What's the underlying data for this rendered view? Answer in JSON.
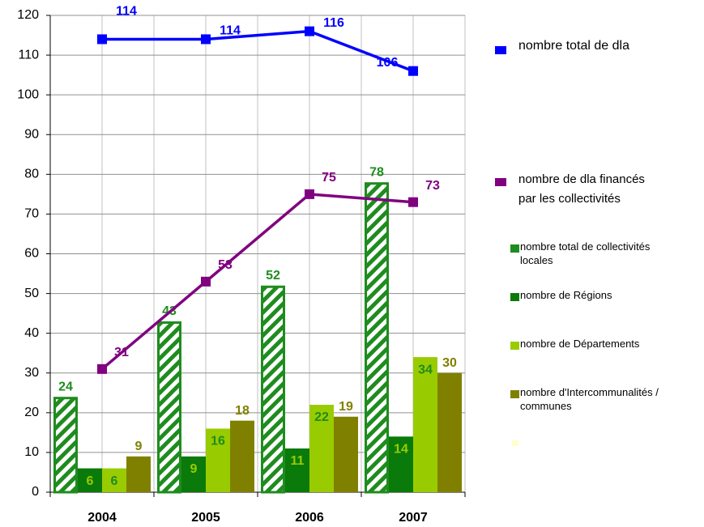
{
  "chart_data": {
    "type": "bar-line",
    "categories": [
      "2004",
      "2005",
      "2006",
      "2007"
    ],
    "series": [
      {
        "name": "nombre total de collectivités locales",
        "color": "#1e8c1e",
        "pattern": "hatch",
        "values": [
          24,
          43,
          52,
          78
        ]
      },
      {
        "name": "nombre de Régions",
        "color": "#0a7a0a",
        "values": [
          6,
          9,
          11,
          14
        ]
      },
      {
        "name": "nombre de Départements",
        "color": "#99cc00",
        "values": [
          6,
          16,
          22,
          34
        ]
      },
      {
        "name": "nombre d'Intercommunalités / communes",
        "color": "#808000",
        "values": [
          9,
          18,
          19,
          30
        ]
      }
    ],
    "lines": [
      {
        "name": "nombre total de dla",
        "color": "#0000ff",
        "values": [
          114,
          114,
          116,
          106
        ]
      },
      {
        "name": "nombre de dla financés par les collectivités",
        "color": "#800080",
        "values": [
          31,
          53,
          75,
          73
        ]
      }
    ],
    "ylim": [
      0,
      120
    ],
    "yticks": [
      0,
      10,
      20,
      30,
      40,
      50,
      60,
      70,
      80,
      90,
      100,
      110,
      120
    ],
    "grid": true,
    "legend": "right"
  }
}
